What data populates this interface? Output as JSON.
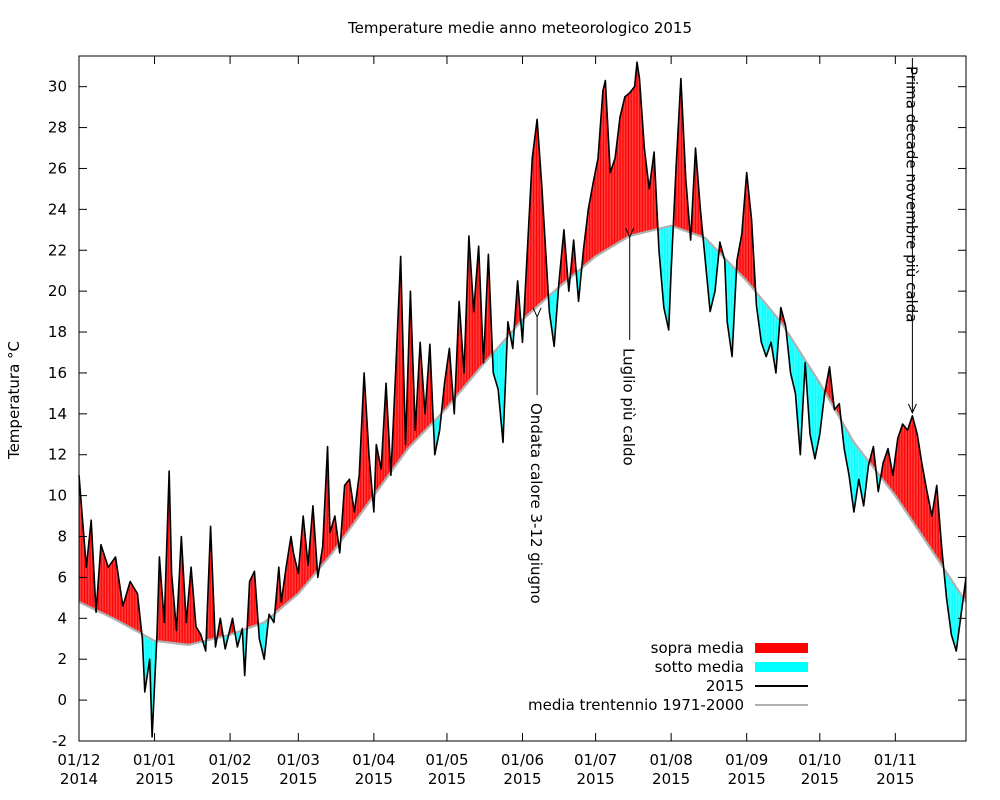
{
  "chart_data": {
    "type": "area",
    "title": "Temperature medie anno meteorologico 2015",
    "xlabel": "",
    "ylabel": "Temperatura °C",
    "ylim": [
      -2,
      31.5
    ],
    "yticks": [
      -2,
      0,
      2,
      4,
      6,
      8,
      10,
      12,
      14,
      16,
      18,
      20,
      22,
      24,
      26,
      28,
      30
    ],
    "x_start": "2014-12-01",
    "x_end": "2015-11-30",
    "xticks": [
      {
        "date": "2014-12-01",
        "line1": "01/12",
        "line2": "2014"
      },
      {
        "date": "2015-01-01",
        "line1": "01/01",
        "line2": "2015"
      },
      {
        "date": "2015-02-01",
        "line1": "01/02",
        "line2": "2015"
      },
      {
        "date": "2015-03-01",
        "line1": "01/03",
        "line2": "2015"
      },
      {
        "date": "2015-04-01",
        "line1": "01/04",
        "line2": "2015"
      },
      {
        "date": "2015-05-01",
        "line1": "01/05",
        "line2": "2015"
      },
      {
        "date": "2015-06-01",
        "line1": "01/06",
        "line2": "2015"
      },
      {
        "date": "2015-07-01",
        "line1": "01/07",
        "line2": "2015"
      },
      {
        "date": "2015-08-01",
        "line1": "01/08",
        "line2": "2015"
      },
      {
        "date": "2015-09-01",
        "line1": "01/09",
        "line2": "2015"
      },
      {
        "date": "2015-10-01",
        "line1": "01/10",
        "line2": "2015"
      },
      {
        "date": "2015-11-01",
        "line1": "01/11",
        "line2": "2015"
      }
    ],
    "legend_position": "bottom-right",
    "legend": [
      {
        "label": "sopra media",
        "kind": "fill",
        "color": "#ff0000"
      },
      {
        "label": "sotto media",
        "kind": "fill",
        "color": "#00ffff"
      },
      {
        "label": "2015",
        "kind": "line",
        "color": "#000000"
      },
      {
        "label": "media trentennio 1971-2000",
        "kind": "line",
        "color": "#b0b0b0"
      }
    ],
    "colors": {
      "above": "#ff0000",
      "below": "#00ffff",
      "actual": "#000000",
      "normal": "#b0b0b0"
    },
    "series": [
      {
        "name": "2015",
        "points": [
          [
            "2014-12-01",
            11.0
          ],
          [
            "2014-12-04",
            6.5
          ],
          [
            "2014-12-06",
            8.8
          ],
          [
            "2014-12-08",
            4.3
          ],
          [
            "2014-12-10",
            7.6
          ],
          [
            "2014-12-13",
            6.5
          ],
          [
            "2014-12-16",
            7.0
          ],
          [
            "2014-12-19",
            4.6
          ],
          [
            "2014-12-22",
            5.8
          ],
          [
            "2014-12-25",
            5.2
          ],
          [
            "2014-12-27",
            3.0
          ],
          [
            "2014-12-28",
            0.4
          ],
          [
            "2014-12-30",
            2.0
          ],
          [
            "2014-12-31",
            -1.8
          ],
          [
            "2015-01-02",
            3.2
          ],
          [
            "2015-01-03",
            7.0
          ],
          [
            "2015-01-05",
            3.8
          ],
          [
            "2015-01-07",
            11.2
          ],
          [
            "2015-01-08",
            6.2
          ],
          [
            "2015-01-10",
            3.4
          ],
          [
            "2015-01-12",
            8.0
          ],
          [
            "2015-01-14",
            3.8
          ],
          [
            "2015-01-16",
            6.5
          ],
          [
            "2015-01-18",
            3.6
          ],
          [
            "2015-01-20",
            3.2
          ],
          [
            "2015-01-22",
            2.4
          ],
          [
            "2015-01-24",
            8.5
          ],
          [
            "2015-01-26",
            2.6
          ],
          [
            "2015-01-28",
            4.0
          ],
          [
            "2015-01-30",
            2.5
          ],
          [
            "2015-02-02",
            4.0
          ],
          [
            "2015-02-04",
            2.6
          ],
          [
            "2015-02-06",
            3.5
          ],
          [
            "2015-02-07",
            1.2
          ],
          [
            "2015-02-09",
            5.8
          ],
          [
            "2015-02-11",
            6.3
          ],
          [
            "2015-02-13",
            3.0
          ],
          [
            "2015-02-15",
            2.0
          ],
          [
            "2015-02-17",
            4.2
          ],
          [
            "2015-02-19",
            3.8
          ],
          [
            "2015-02-21",
            6.5
          ],
          [
            "2015-02-22",
            4.8
          ],
          [
            "2015-02-24",
            6.5
          ],
          [
            "2015-02-26",
            8.0
          ],
          [
            "2015-02-27",
            7.2
          ],
          [
            "2015-03-01",
            6.2
          ],
          [
            "2015-03-03",
            9.0
          ],
          [
            "2015-03-05",
            6.6
          ],
          [
            "2015-03-07",
            9.5
          ],
          [
            "2015-03-09",
            6.0
          ],
          [
            "2015-03-11",
            7.5
          ],
          [
            "2015-03-13",
            12.4
          ],
          [
            "2015-03-14",
            8.2
          ],
          [
            "2015-03-16",
            9.0
          ],
          [
            "2015-03-18",
            7.2
          ],
          [
            "2015-03-20",
            10.5
          ],
          [
            "2015-03-22",
            10.8
          ],
          [
            "2015-03-24",
            9.2
          ],
          [
            "2015-03-26",
            11.0
          ],
          [
            "2015-03-28",
            16.0
          ],
          [
            "2015-03-30",
            12.0
          ],
          [
            "2015-04-01",
            9.2
          ],
          [
            "2015-04-02",
            12.5
          ],
          [
            "2015-04-04",
            11.3
          ],
          [
            "2015-04-06",
            15.5
          ],
          [
            "2015-04-08",
            11.0
          ],
          [
            "2015-04-10",
            16.2
          ],
          [
            "2015-04-12",
            21.7
          ],
          [
            "2015-04-14",
            12.5
          ],
          [
            "2015-04-16",
            20.0
          ],
          [
            "2015-04-18",
            13.2
          ],
          [
            "2015-04-20",
            17.5
          ],
          [
            "2015-04-22",
            14.0
          ],
          [
            "2015-04-24",
            17.4
          ],
          [
            "2015-04-26",
            12.0
          ],
          [
            "2015-04-28",
            13.2
          ],
          [
            "2015-04-30",
            15.5
          ],
          [
            "2015-05-02",
            17.2
          ],
          [
            "2015-05-04",
            14.0
          ],
          [
            "2015-05-06",
            19.5
          ],
          [
            "2015-05-08",
            16.0
          ],
          [
            "2015-05-10",
            22.7
          ],
          [
            "2015-05-12",
            19.0
          ],
          [
            "2015-05-14",
            22.2
          ],
          [
            "2015-05-16",
            16.5
          ],
          [
            "2015-05-18",
            21.8
          ],
          [
            "2015-05-20",
            16.0
          ],
          [
            "2015-05-22",
            15.2
          ],
          [
            "2015-05-24",
            12.6
          ],
          [
            "2015-05-26",
            18.5
          ],
          [
            "2015-05-28",
            17.2
          ],
          [
            "2015-05-30",
            20.5
          ],
          [
            "2015-06-01",
            17.5
          ],
          [
            "2015-06-03",
            22.0
          ],
          [
            "2015-06-05",
            26.5
          ],
          [
            "2015-06-07",
            28.4
          ],
          [
            "2015-06-09",
            25.0
          ],
          [
            "2015-06-11",
            21.0
          ],
          [
            "2015-06-12",
            19.0
          ],
          [
            "2015-06-14",
            17.3
          ],
          [
            "2015-06-16",
            20.5
          ],
          [
            "2015-06-18",
            23.0
          ],
          [
            "2015-06-20",
            20.0
          ],
          [
            "2015-06-22",
            22.5
          ],
          [
            "2015-06-24",
            19.5
          ],
          [
            "2015-06-26",
            22.0
          ],
          [
            "2015-06-28",
            24.0
          ],
          [
            "2015-06-30",
            25.3
          ],
          [
            "2015-07-02",
            26.5
          ],
          [
            "2015-07-04",
            29.8
          ],
          [
            "2015-07-05",
            30.3
          ],
          [
            "2015-07-07",
            25.8
          ],
          [
            "2015-07-09",
            26.5
          ],
          [
            "2015-07-11",
            28.5
          ],
          [
            "2015-07-13",
            29.5
          ],
          [
            "2015-07-15",
            29.7
          ],
          [
            "2015-07-17",
            30.0
          ],
          [
            "2015-07-18",
            31.2
          ],
          [
            "2015-07-19",
            30.4
          ],
          [
            "2015-07-21",
            27.0
          ],
          [
            "2015-07-23",
            25.0
          ],
          [
            "2015-07-25",
            26.8
          ],
          [
            "2015-07-27",
            22.0
          ],
          [
            "2015-07-29",
            19.2
          ],
          [
            "2015-07-31",
            18.1
          ],
          [
            "2015-08-01",
            21.0
          ],
          [
            "2015-08-03",
            26.0
          ],
          [
            "2015-08-05",
            30.4
          ],
          [
            "2015-08-07",
            25.5
          ],
          [
            "2015-08-09",
            22.5
          ],
          [
            "2015-08-11",
            27.0
          ],
          [
            "2015-08-13",
            24.0
          ],
          [
            "2015-08-15",
            21.5
          ],
          [
            "2015-08-17",
            19.0
          ],
          [
            "2015-08-19",
            20.0
          ],
          [
            "2015-08-21",
            22.4
          ],
          [
            "2015-08-23",
            21.5
          ],
          [
            "2015-08-24",
            18.5
          ],
          [
            "2015-08-26",
            16.8
          ],
          [
            "2015-08-28",
            21.5
          ],
          [
            "2015-08-30",
            22.8
          ],
          [
            "2015-09-01",
            25.8
          ],
          [
            "2015-09-03",
            23.5
          ],
          [
            "2015-09-05",
            19.3
          ],
          [
            "2015-09-07",
            17.5
          ],
          [
            "2015-09-09",
            16.8
          ],
          [
            "2015-09-11",
            17.5
          ],
          [
            "2015-09-13",
            16.0
          ],
          [
            "2015-09-15",
            19.2
          ],
          [
            "2015-09-17",
            18.3
          ],
          [
            "2015-09-19",
            16.0
          ],
          [
            "2015-09-21",
            15.0
          ],
          [
            "2015-09-23",
            12.0
          ],
          [
            "2015-09-25",
            16.5
          ],
          [
            "2015-09-27",
            13.0
          ],
          [
            "2015-09-29",
            11.8
          ],
          [
            "2015-10-01",
            13.0
          ],
          [
            "2015-10-03",
            15.0
          ],
          [
            "2015-10-05",
            16.3
          ],
          [
            "2015-10-07",
            14.2
          ],
          [
            "2015-10-09",
            14.5
          ],
          [
            "2015-10-11",
            12.3
          ],
          [
            "2015-10-13",
            11.0
          ],
          [
            "2015-10-15",
            9.2
          ],
          [
            "2015-10-17",
            10.8
          ],
          [
            "2015-10-19",
            9.5
          ],
          [
            "2015-10-21",
            11.5
          ],
          [
            "2015-10-23",
            12.4
          ],
          [
            "2015-10-25",
            10.2
          ],
          [
            "2015-10-27",
            11.6
          ],
          [
            "2015-10-29",
            12.3
          ],
          [
            "2015-10-31",
            11.0
          ],
          [
            "2015-11-02",
            12.8
          ],
          [
            "2015-11-04",
            13.5
          ],
          [
            "2015-11-06",
            13.2
          ],
          [
            "2015-11-08",
            13.9
          ],
          [
            "2015-11-10",
            13.0
          ],
          [
            "2015-11-12",
            11.5
          ],
          [
            "2015-11-14",
            10.2
          ],
          [
            "2015-11-16",
            9.0
          ],
          [
            "2015-11-18",
            10.5
          ],
          [
            "2015-11-20",
            7.5
          ],
          [
            "2015-11-22",
            5.0
          ],
          [
            "2015-11-24",
            3.2
          ],
          [
            "2015-11-26",
            2.4
          ],
          [
            "2015-11-28",
            4.2
          ],
          [
            "2015-11-30",
            6.0
          ]
        ]
      },
      {
        "name": "media trentennio 1971-2000",
        "points": [
          [
            "2014-12-01",
            4.8
          ],
          [
            "2014-12-15",
            4.0
          ],
          [
            "2015-01-01",
            2.9
          ],
          [
            "2015-01-15",
            2.7
          ],
          [
            "2015-02-01",
            3.2
          ],
          [
            "2015-02-15",
            3.8
          ],
          [
            "2015-03-01",
            5.2
          ],
          [
            "2015-03-15",
            7.2
          ],
          [
            "2015-04-01",
            10.0
          ],
          [
            "2015-04-15",
            12.3
          ],
          [
            "2015-05-01",
            14.3
          ],
          [
            "2015-05-15",
            16.3
          ],
          [
            "2015-06-01",
            18.6
          ],
          [
            "2015-06-15",
            20.1
          ],
          [
            "2015-07-01",
            21.7
          ],
          [
            "2015-07-15",
            22.7
          ],
          [
            "2015-08-01",
            23.2
          ],
          [
            "2015-08-15",
            22.6
          ],
          [
            "2015-09-01",
            20.5
          ],
          [
            "2015-09-15",
            18.5
          ],
          [
            "2015-10-01",
            15.5
          ],
          [
            "2015-10-15",
            12.6
          ],
          [
            "2015-11-01",
            10.0
          ],
          [
            "2015-11-15",
            7.5
          ],
          [
            "2015-11-30",
            4.8
          ]
        ]
      }
    ],
    "annotations": [
      {
        "text": "Ondata calore 3-12 giugno",
        "date": "2015-06-07",
        "value": 18.6
      },
      {
        "text": "Luglio più caldo",
        "date": "2015-07-15",
        "value": 22.5
      },
      {
        "text": "Prima decade novembre più calda",
        "date": "2015-11-08",
        "value": 13.9
      }
    ]
  }
}
